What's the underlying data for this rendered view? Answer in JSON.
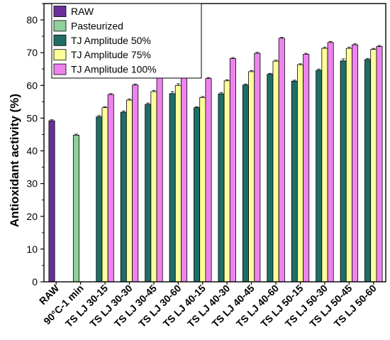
{
  "chart_data": {
    "type": "bar",
    "ylabel": "Antioxidant activity (%)",
    "ylim": [
      0,
      85
    ],
    "yticks": [
      0,
      10,
      20,
      30,
      40,
      50,
      60,
      70,
      80
    ],
    "categories": [
      "RAW",
      "90°C-1 min",
      "TS LJ 30-15",
      "TS LJ 30-30",
      "TS LJ 30-45",
      "TS LJ 30-60",
      "TS LJ 40-15",
      "TS LJ 40-30",
      "TS LJ 40-45",
      "TS LJ 40-60",
      "TS LJ 50-15",
      "TS LJ 50-30",
      "TS LJ 50-45",
      "TS LJ 50-60"
    ],
    "legend_position": "top-left",
    "series": [
      {
        "name": "RAW",
        "color": "#6a2f9a",
        "values": [
          49.2,
          null,
          null,
          null,
          null,
          null,
          null,
          null,
          null,
          null,
          null,
          null,
          null,
          null
        ],
        "errors": [
          0.3,
          null,
          null,
          null,
          null,
          null,
          null,
          null,
          null,
          null,
          null,
          null,
          null,
          null
        ]
      },
      {
        "name": "Pasteurized",
        "color": "#90d09a",
        "values": [
          null,
          44.8,
          null,
          null,
          null,
          null,
          null,
          null,
          null,
          null,
          null,
          null,
          null,
          null
        ],
        "errors": [
          null,
          0.3,
          null,
          null,
          null,
          null,
          null,
          null,
          null,
          null,
          null,
          null,
          null,
          null
        ]
      },
      {
        "name": "TJ Amplitude 50%",
        "color": "#1e6e66",
        "values": [
          null,
          null,
          50.4,
          51.8,
          54.2,
          57.5,
          53.2,
          57.4,
          60.1,
          63.4,
          61.3,
          64.6,
          67.5,
          67.9
        ],
        "errors": [
          null,
          null,
          0.4,
          0.4,
          0.4,
          0.6,
          0.3,
          0.4,
          0.3,
          0.3,
          0.3,
          0.4,
          0.6,
          0.3
        ]
      },
      {
        "name": "TJ Amplitude 75%",
        "color": "#ffff99",
        "values": [
          null,
          null,
          53.2,
          55.5,
          58.1,
          60.0,
          56.3,
          61.4,
          64.2,
          67.4,
          66.3,
          71.3,
          71.3,
          71.0
        ],
        "errors": [
          null,
          null,
          0.3,
          0.3,
          0.4,
          0.5,
          0.3,
          0.3,
          0.3,
          0.3,
          0.3,
          0.4,
          0.4,
          0.3
        ]
      },
      {
        "name": "TJ Amplitude 100%",
        "color": "#ee82ee",
        "values": [
          null,
          null,
          57.2,
          60.1,
          63.3,
          67.1,
          62.1,
          68.2,
          69.8,
          74.4,
          69.5,
          73.1,
          72.4,
          71.9
        ],
        "errors": [
          null,
          null,
          0.3,
          0.3,
          0.3,
          0.3,
          0.3,
          0.3,
          0.3,
          0.3,
          0.3,
          0.3,
          0.3,
          0.3
        ]
      }
    ]
  }
}
